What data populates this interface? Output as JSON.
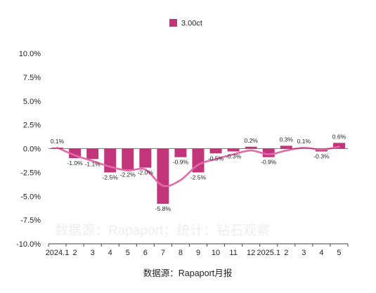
{
  "chart_data": {
    "type": "bar",
    "categories": [
      "2024.1",
      "2",
      "3",
      "4",
      "5",
      "6",
      "7",
      "8",
      "9",
      "10",
      "11",
      "12",
      "2025.1",
      "2",
      "3",
      "4",
      "5"
    ],
    "series": [
      {
        "name": "3.00ct",
        "values": [
          0.1,
          -1.0,
          -1.1,
          -2.5,
          -2.2,
          -2.0,
          -5.8,
          -0.9,
          -2.5,
          -0.5,
          -0.3,
          0.2,
          -0.9,
          0.3,
          0.1,
          -0.3,
          0.6
        ]
      }
    ],
    "data_labels": [
      "0.1%",
      "-1.0%",
      "-1.1%",
      "-2.5%",
      "-2.2%",
      "-2.0%",
      "-5.8%",
      "-0.9%",
      "-2.5%",
      "-0.5%",
      "-0.3%",
      "0.2%",
      "-0.9%",
      "0.3%",
      "0.1%",
      "-0.3%",
      "0.6%"
    ],
    "trend_line": [
      0.1,
      -0.7,
      -1.3,
      -1.9,
      -2.3,
      -2.2,
      -3.9,
      -3.3,
      -1.7,
      -1.1,
      -0.6,
      -0.2,
      -0.6,
      -0.2,
      0.1,
      -0.1,
      0.2
    ],
    "ylim": [
      -10,
      10
    ],
    "yticks": [
      10,
      7.5,
      5,
      2.5,
      0,
      -2.5,
      -5,
      -7.5,
      -10
    ],
    "ytick_labels": [
      "10.0%",
      "7.5%",
      "5.0%",
      "2.5%",
      "0.0%",
      "-2.5%",
      "-5.0%",
      "-7.5%",
      "-10.0%"
    ],
    "legend_position": "top",
    "grid": false,
    "colors": {
      "bar": "#c2357a",
      "line": "#e36aa8"
    }
  },
  "source_note": "数据源：Rapaport月报",
  "watermark": "数据源：Rapaport；统计：钻石观察"
}
